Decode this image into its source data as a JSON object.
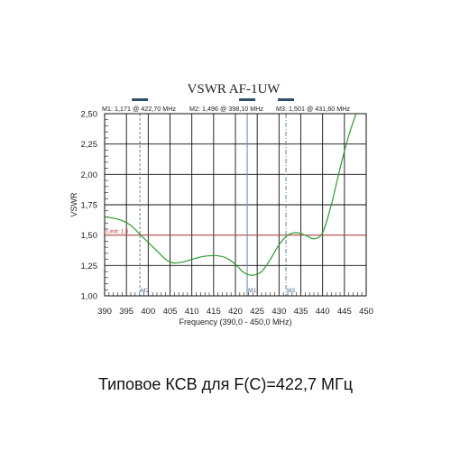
{
  "caption": "Типовое КСВ для F(C)=422,7 МГц",
  "chart_data": {
    "type": "line",
    "title": "VSWR AF-1UW",
    "xlabel": "Frequency (390,0 - 450,0 MHz)",
    "ylabel": "VSWR",
    "xlim": [
      390,
      450
    ],
    "ylim": [
      1.0,
      2.5
    ],
    "grid": true,
    "x_ticks": [
      "390",
      "395",
      "400",
      "405",
      "410",
      "415",
      "420",
      "425",
      "430",
      "435",
      "440",
      "445",
      "450"
    ],
    "y_ticks": [
      "1,00",
      "1,25",
      "1,50",
      "1,75",
      "2,00",
      "2,25",
      "2,50"
    ],
    "colors": {
      "curve": "#2e9b2e",
      "limit": "#d94c4c",
      "marker": "#6f8fad",
      "marker_bar": "#2f4f6f",
      "grid": "#111111"
    },
    "limit": {
      "value": 1.5,
      "label": "Limit: 1,5"
    },
    "markers_info": [
      {
        "text": "M1: 1,171  @ 422,70 MHz"
      },
      {
        "text": "M2: 1,496  @ 398,10 MHz"
      },
      {
        "text": "M3: 1,501  @ 431,60 MHz"
      }
    ],
    "markers": [
      {
        "label": "M2",
        "x": 398.1,
        "value": 1.496,
        "style": "dashed"
      },
      {
        "label": "M1",
        "x": 422.7,
        "value": 1.171,
        "style": "solid"
      },
      {
        "label": "M3",
        "x": 431.6,
        "value": 1.501,
        "style": "dashdot"
      }
    ],
    "series": [
      {
        "x": [
          390,
          392,
          394,
          396,
          398,
          400,
          402,
          404,
          405,
          406,
          408,
          410,
          412,
          414,
          416,
          418,
          420,
          422,
          424,
          426,
          428,
          430,
          432,
          434,
          436,
          438,
          440,
          442,
          444,
          446,
          448,
          450
        ],
        "values": [
          1.65,
          1.64,
          1.62,
          1.58,
          1.51,
          1.44,
          1.37,
          1.3,
          1.28,
          1.27,
          1.28,
          1.3,
          1.32,
          1.33,
          1.33,
          1.31,
          1.26,
          1.19,
          1.17,
          1.2,
          1.3,
          1.42,
          1.5,
          1.52,
          1.5,
          1.47,
          1.52,
          1.75,
          2.05,
          2.32,
          2.53,
          2.7
        ]
      }
    ]
  }
}
